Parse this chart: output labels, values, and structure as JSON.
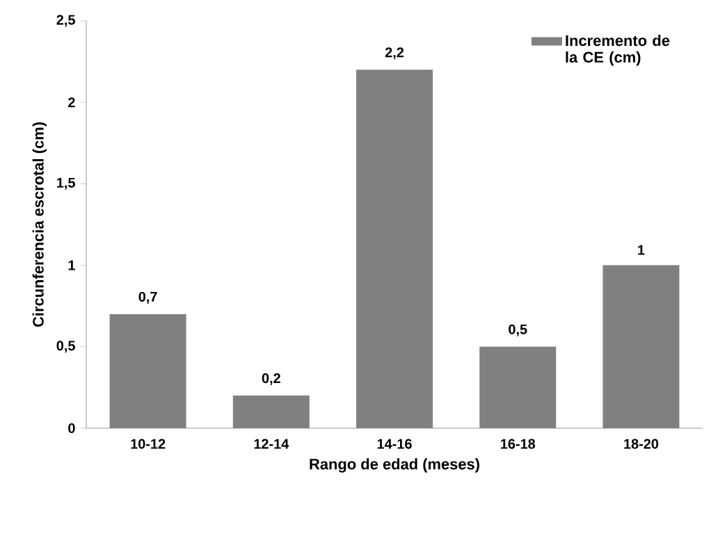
{
  "chart_data": {
    "type": "bar",
    "xlabel": "Rango de edad (meses)",
    "ylabel": "Circunferencia escrotal (cm)",
    "categories": [
      "10-12",
      "12-14",
      "14-16",
      "16-18",
      "18-20"
    ],
    "series": [
      {
        "name": "Incremento de la  CE (cm)",
        "color": "#808080",
        "values": [
          0.7,
          0.2,
          2.2,
          0.5,
          1
        ],
        "value_labels": [
          "0,7",
          "0,2",
          "2,2",
          "0,5",
          "1"
        ]
      }
    ],
    "ylim": [
      0,
      2.5
    ],
    "yticks": [
      0,
      {
        "value": 0.5,
        "label": "0,5"
      },
      1,
      {
        "value": 1.5,
        "label": "1,5"
      },
      2,
      {
        "value": 2.5,
        "label": "2,5"
      }
    ],
    "legend": "top right",
    "grid": false
  }
}
